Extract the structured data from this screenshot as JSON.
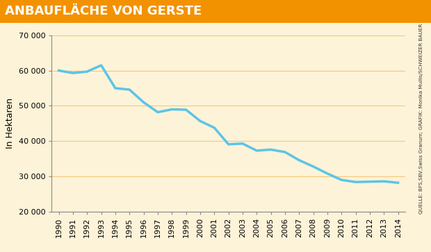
{
  "chart_data": {
    "type": "line",
    "title": "ANBAUFLÄCHE VON GERSTE",
    "y_label": "In Hektaren",
    "source": "QUELLE: BFS,SBV,Swiss Granum; GRAFIK: Monika Mullis/SCHWEIZER BAUER",
    "categories": [
      "1990",
      "1991",
      "1992",
      "1993",
      "1994",
      "1995",
      "1996",
      "1997",
      "1998",
      "1999",
      "2000",
      "2001",
      "2002",
      "2003",
      "2004",
      "2005",
      "2006",
      "2007",
      "2008",
      "2009",
      "2010",
      "2011",
      "2012",
      "2013",
      "2014"
    ],
    "values": [
      60000,
      59300,
      59700,
      61500,
      55000,
      54600,
      51000,
      48200,
      49000,
      48900,
      45700,
      43800,
      39100,
      39300,
      37300,
      37600,
      36900,
      34600,
      32800,
      30800,
      29000,
      28400,
      28500,
      28600,
      28200
    ],
    "color": "#5bc4e8",
    "ylim": [
      20000,
      70000
    ],
    "yticks": [
      {
        "value": 20000,
        "label": "20 000"
      },
      {
        "value": 30000,
        "label": "30 000"
      },
      {
        "value": 40000,
        "label": "40 000"
      },
      {
        "value": 50000,
        "label": "50 000"
      },
      {
        "value": 60000,
        "label": "60 000"
      },
      {
        "value": 70000,
        "label": "70 000"
      }
    ],
    "grid": true
  }
}
